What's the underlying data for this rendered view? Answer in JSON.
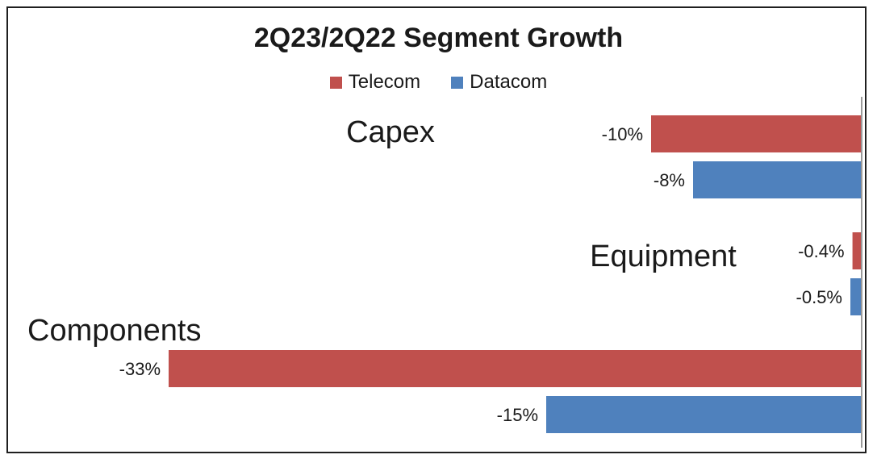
{
  "chart_data": {
    "type": "bar",
    "orientation": "horizontal",
    "title": "2Q23/2Q22 Segment Growth",
    "categories": [
      "Capex",
      "Equipment",
      "Components"
    ],
    "series": [
      {
        "name": "Telecom",
        "color": "#c0504d",
        "values": [
          -10,
          -0.4,
          -33
        ],
        "labels": [
          "-10%",
          "-0.4%",
          "-33%"
        ]
      },
      {
        "name": "Datacom",
        "color": "#4f81bd",
        "values": [
          -8,
          -0.5,
          -15
        ],
        "labels": [
          "-8%",
          "-0.5%",
          "-15%"
        ]
      }
    ],
    "unit": "%",
    "legend_position": "top",
    "grid": false
  }
}
